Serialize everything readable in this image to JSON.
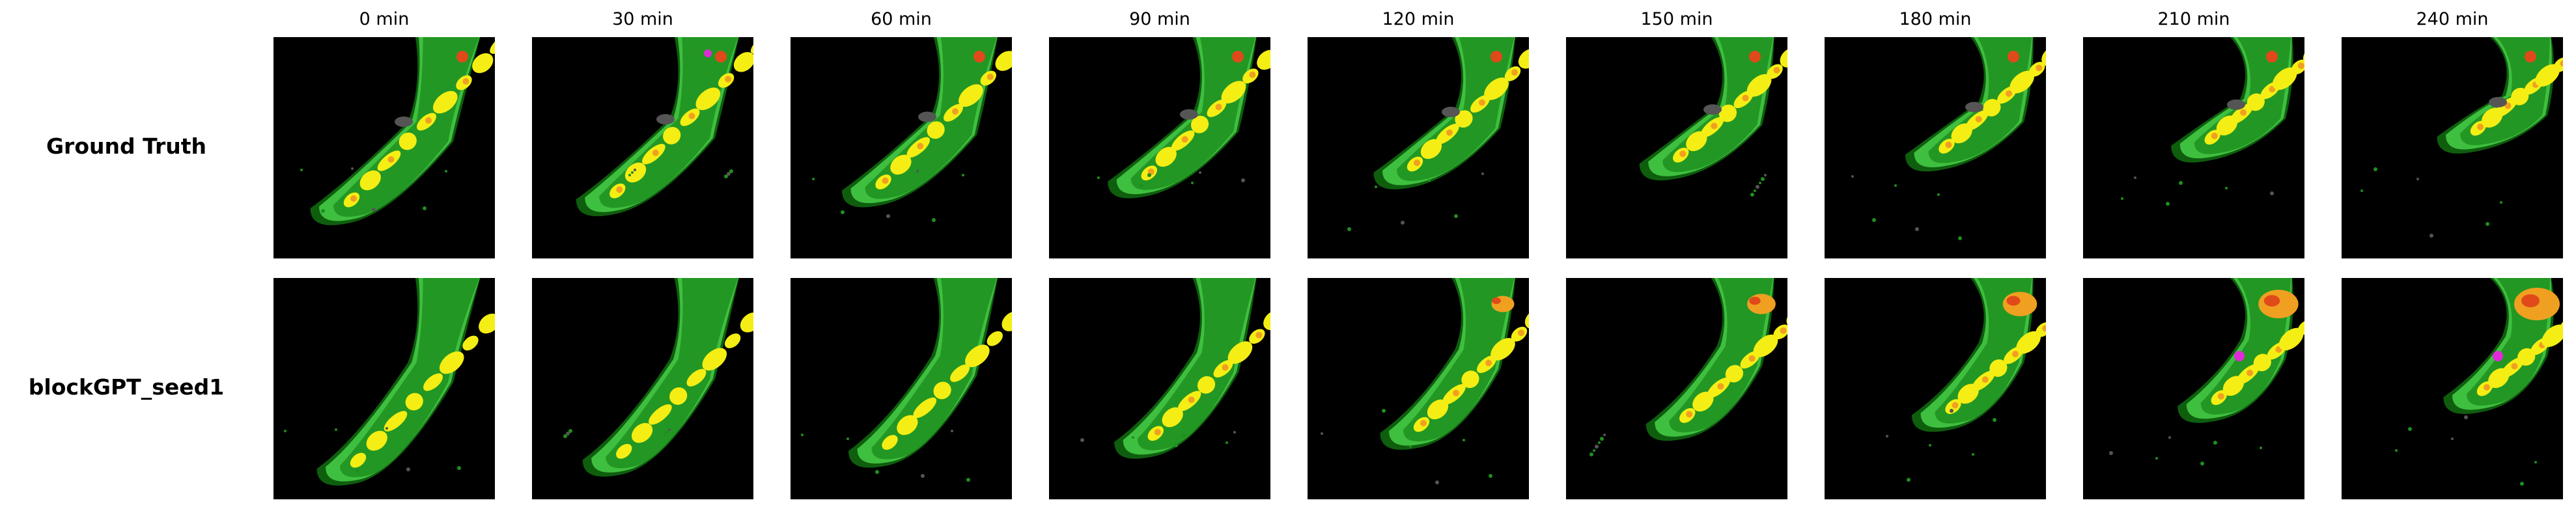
{
  "columns": [
    "0 min",
    "30 min",
    "60 min",
    "90 min",
    "120 min",
    "150 min",
    "180 min",
    "210 min",
    "240 min"
  ],
  "rows": [
    {
      "label": "Ground Truth"
    },
    {
      "label": "blockGPT_seed1"
    }
  ],
  "colors": {
    "background": "#000000",
    "light_green": "#3fbf3f",
    "green": "#1f8f1f",
    "dark_green": "#0e5e0e",
    "yellow": "#f4ee14",
    "orange": "#f0a020",
    "red": "#e04a1a",
    "magenta": "#e02ad8",
    "gray": "#555555"
  }
}
